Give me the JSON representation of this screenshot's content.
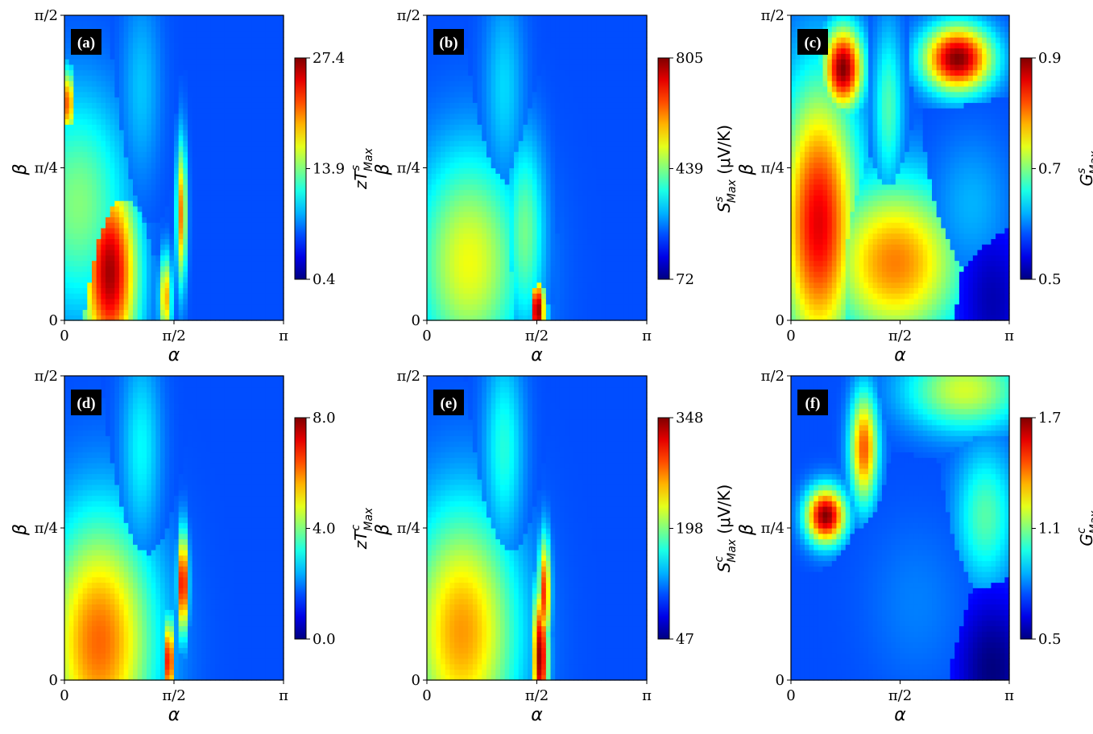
{
  "chart_data": [
    {
      "type": "heatmap",
      "panel_tag": "(a)",
      "x_ticks": [
        "0",
        "π/2",
        "π"
      ],
      "y_ticks": [
        "0",
        "π/4",
        "π/2"
      ],
      "xlabel": "α",
      "ylabel": "β",
      "xlim": [
        0,
        3.1416
      ],
      "ylim": [
        0,
        1.5708
      ],
      "colorbar": {
        "ticks": [
          "0.4",
          "13.9",
          "27.4"
        ],
        "range": [
          0.4,
          27.4
        ],
        "label_base": "zT",
        "label_sup": "s",
        "label_sub": "Max",
        "label_unit": ""
      },
      "colormap": "jet",
      "features": [
        {
          "x": 0.65,
          "y": 0.25,
          "value": 26.5,
          "sx": 0.28,
          "sy": 0.35
        },
        {
          "x": 0.05,
          "y": 1.12,
          "value": 22,
          "sx": 0.07,
          "sy": 0.12
        },
        {
          "x": 1.68,
          "y": 0.55,
          "value": 21,
          "sx": 0.05,
          "sy": 0.25
        },
        {
          "x": 1.45,
          "y": 0.12,
          "value": 20,
          "sx": 0.06,
          "sy": 0.15
        },
        {
          "x": 0.2,
          "y": 0.6,
          "value": 14,
          "sx": 0.5,
          "sy": 0.4
        },
        {
          "x": 1.1,
          "y": 1.2,
          "value": 9,
          "sx": 0.2,
          "sy": 0.35
        }
      ]
    },
    {
      "type": "heatmap",
      "panel_tag": "(b)",
      "x_ticks": [
        "0",
        "π/2",
        "π"
      ],
      "y_ticks": [
        "0",
        "π/4",
        "π/2"
      ],
      "xlabel": "α",
      "ylabel": "β",
      "xlim": [
        0,
        3.1416
      ],
      "ylim": [
        0,
        1.5708
      ],
      "colorbar": {
        "ticks": [
          "72",
          "439",
          "805"
        ],
        "range": [
          72,
          805
        ],
        "label_base": "S",
        "label_sup": "s",
        "label_sub": "Max",
        "label_unit": " (μV/K)"
      },
      "colormap": "jet",
      "features": [
        {
          "x": 1.58,
          "y": 0.05,
          "value": 805,
          "sx": 0.08,
          "sy": 0.12
        },
        {
          "x": 0.6,
          "y": 0.3,
          "value": 520,
          "sx": 0.55,
          "sy": 0.4
        },
        {
          "x": 1.4,
          "y": 0.45,
          "value": 430,
          "sx": 0.2,
          "sy": 0.35
        },
        {
          "x": 1.1,
          "y": 1.2,
          "value": 320,
          "sx": 0.2,
          "sy": 0.35
        }
      ]
    },
    {
      "type": "heatmap",
      "panel_tag": "(c)",
      "x_ticks": [
        "0",
        "π/2",
        "π"
      ],
      "y_ticks": [
        "0",
        "π/4",
        "π/2"
      ],
      "xlabel": "α",
      "ylabel": "β",
      "xlim": [
        0,
        3.1416
      ],
      "ylim": [
        0,
        1.5708
      ],
      "colorbar": {
        "ticks": [
          "0.5",
          "0.7",
          "0.9"
        ],
        "range": [
          0.5,
          0.9
        ],
        "label_base": "G",
        "label_sup": "s",
        "label_sub": "Max",
        "label_unit": ""
      },
      "colormap": "jet",
      "features": [
        {
          "x": 0.75,
          "y": 1.3,
          "value": 0.9,
          "sx": 0.2,
          "sy": 0.15
        },
        {
          "x": 2.4,
          "y": 1.35,
          "value": 0.9,
          "sx": 0.35,
          "sy": 0.12
        },
        {
          "x": 0.4,
          "y": 0.5,
          "value": 0.86,
          "sx": 0.4,
          "sy": 0.5
        },
        {
          "x": 1.5,
          "y": 0.3,
          "value": 0.8,
          "sx": 0.7,
          "sy": 0.3
        },
        {
          "x": 1.4,
          "y": 1.1,
          "value": 0.68,
          "sx": 0.15,
          "sy": 0.3
        },
        {
          "x": 2.9,
          "y": 0.1,
          "value": 0.52,
          "sx": 0.35,
          "sy": 0.3
        },
        {
          "x": 2.6,
          "y": 0.6,
          "value": 0.62,
          "sx": 0.4,
          "sy": 0.25
        }
      ]
    },
    {
      "type": "heatmap",
      "panel_tag": "(d)",
      "x_ticks": [
        "0",
        "π/2",
        "π"
      ],
      "y_ticks": [
        "0",
        "π/4",
        "π/2"
      ],
      "xlabel": "α",
      "ylabel": "β",
      "xlim": [
        0,
        3.1416
      ],
      "ylim": [
        0,
        1.5708
      ],
      "colorbar": {
        "ticks": [
          "0.0",
          "4.0",
          "8.0"
        ],
        "range": [
          0,
          8
        ],
        "label_base": "zT",
        "label_sup": "c",
        "label_sub": "Max",
        "label_unit": ""
      },
      "colormap": "jet",
      "features": [
        {
          "x": 1.7,
          "y": 0.5,
          "value": 7.8,
          "sx": 0.05,
          "sy": 0.18
        },
        {
          "x": 1.5,
          "y": 0.1,
          "value": 7.6,
          "sx": 0.05,
          "sy": 0.15
        },
        {
          "x": 0.5,
          "y": 0.2,
          "value": 6.2,
          "sx": 0.55,
          "sy": 0.45
        },
        {
          "x": 1.1,
          "y": 1.2,
          "value": 3,
          "sx": 0.2,
          "sy": 0.35
        }
      ]
    },
    {
      "type": "heatmap",
      "panel_tag": "(e)",
      "x_ticks": [
        "0",
        "π/2",
        "π"
      ],
      "y_ticks": [
        "0",
        "π/4",
        "π/2"
      ],
      "xlabel": "α",
      "ylabel": "β",
      "xlim": [
        0,
        3.1416
      ],
      "ylim": [
        0,
        1.5708
      ],
      "colorbar": {
        "ticks": [
          "47",
          "198",
          "348"
        ],
        "range": [
          47,
          348
        ],
        "label_base": "S",
        "label_sup": "c",
        "label_sub": "Max",
        "label_unit": " (μV/K)"
      },
      "colormap": "jet",
      "features": [
        {
          "x": 1.62,
          "y": 0.12,
          "value": 345,
          "sx": 0.08,
          "sy": 0.25
        },
        {
          "x": 1.68,
          "y": 0.45,
          "value": 300,
          "sx": 0.06,
          "sy": 0.2
        },
        {
          "x": 0.5,
          "y": 0.25,
          "value": 265,
          "sx": 0.55,
          "sy": 0.45
        },
        {
          "x": 1.1,
          "y": 1.2,
          "value": 170,
          "sx": 0.2,
          "sy": 0.35
        }
      ]
    },
    {
      "type": "heatmap",
      "panel_tag": "(f)",
      "x_ticks": [
        "0",
        "π/2",
        "π"
      ],
      "y_ticks": [
        "0",
        "π/4",
        "π/2"
      ],
      "xlabel": "α",
      "ylabel": "β",
      "xlim": [
        0,
        3.1416
      ],
      "ylim": [
        0,
        1.5708
      ],
      "colorbar": {
        "ticks": [
          "0.5",
          "1.1",
          "1.7"
        ],
        "range": [
          0.5,
          1.7
        ],
        "label_base": "G",
        "label_sup": "c",
        "label_sub": "Max",
        "label_unit": ""
      },
      "colormap": "jet",
      "features": [
        {
          "x": 0.5,
          "y": 0.85,
          "value": 1.7,
          "sx": 0.2,
          "sy": 0.1
        },
        {
          "x": 1.05,
          "y": 1.2,
          "value": 1.45,
          "sx": 0.14,
          "sy": 0.2
        },
        {
          "x": 2.5,
          "y": 1.5,
          "value": 1.2,
          "sx": 0.6,
          "sy": 0.15
        },
        {
          "x": 2.8,
          "y": 0.85,
          "value": 1.05,
          "sx": 0.3,
          "sy": 0.25
        },
        {
          "x": 2.9,
          "y": 0.05,
          "value": 0.5,
          "sx": 0.4,
          "sy": 0.3
        },
        {
          "x": 1.8,
          "y": 0.4,
          "value": 0.8,
          "sx": 0.5,
          "sy": 0.3
        }
      ]
    }
  ]
}
